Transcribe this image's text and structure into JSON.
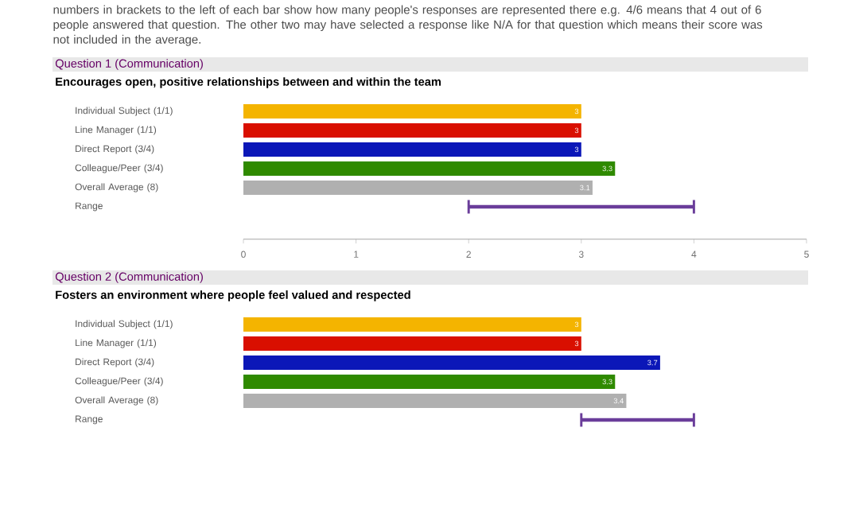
{
  "chart_data": [
    {
      "type": "bar",
      "orientation": "horizontal",
      "title": "Question 1 (Communication)",
      "subtitle": "Encourages open, positive relationships between and within the team",
      "annotations": [
        "numbers in brackets to the left of each bar show how many people's responses are represented there e.g. 4/6 means that 4 out of 6 people answered that question. The other two may have selected a response like N/A for that question which means their score was not included in the average."
      ],
      "categories": [
        "Individual Subject (1/1)",
        "Line Manager (1/1)",
        "Direct Report (3/4)",
        "Colleague/Peer (3/4)",
        "Overall Average (8)",
        "Range"
      ],
      "values": [
        3,
        3,
        3,
        3.3,
        3.1,
        2
      ],
      "base": [
        0,
        0,
        0,
        0,
        0,
        2
      ],
      "colors": [
        "#f4b400",
        "#d90f00",
        "#0b17b8",
        "#2f8a00",
        "#b0b0b0",
        "#6a3d9a"
      ],
      "value_labels": [
        "3",
        "3",
        "3",
        "3.3",
        "3.1",
        null
      ],
      "xlim": [
        0,
        5
      ],
      "xticks": [
        0,
        1,
        2,
        3,
        4,
        5
      ]
    },
    {
      "type": "bar",
      "orientation": "horizontal",
      "title": "Question 2 (Communication)",
      "subtitle": "Fosters an environment where people feel valued and respected",
      "categories": [
        "Individual Subject (1/1)",
        "Line Manager (1/1)",
        "Direct Report (3/4)",
        "Colleague/Peer (3/4)",
        "Overall Average (8)",
        "Range"
      ],
      "values": [
        3,
        3,
        3.7,
        3.3,
        3.4,
        1
      ],
      "base": [
        0,
        0,
        0,
        0,
        0,
        3
      ],
      "colors": [
        "#f4b400",
        "#d90f00",
        "#0b17b8",
        "#2f8a00",
        "#b0b0b0",
        "#6a3d9a"
      ],
      "value_labels": [
        "3",
        "3",
        "3.7",
        "3.3",
        "3.4",
        null
      ],
      "xlim": [
        0,
        5
      ],
      "tick_labels": "y"
    }
  ]
}
